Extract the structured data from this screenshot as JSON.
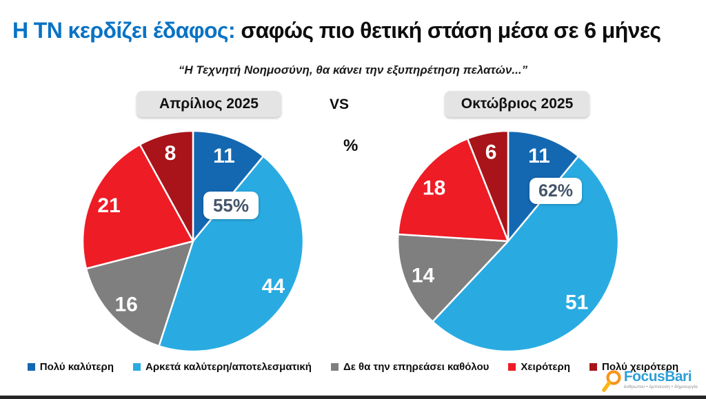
{
  "header": {
    "title_highlight": "Η ΤΝ κερδίζει έδαφος:",
    "title_rest": " σαφώς πιο θετική στάση μέσα σε 6 μήνες",
    "subtitle": "“Η Τεχνητή Νοημοσύνη, θα κάνει την εξυπηρέτηση πελατών...”",
    "vs_label": "VS",
    "percent_symbol": "%"
  },
  "chart_data": {
    "type": "pie",
    "unit": "%",
    "direction": "clockwise",
    "start_angle_deg": 0,
    "legend_position": "bottom",
    "categories": [
      "Πολύ καλύτερη",
      "Αρκετά καλύτερη/αποτελεσματική",
      "Δε θα την επηρεάσει καθόλου",
      "Χειρότερη",
      "Πολύ χειρότερη"
    ],
    "colors": [
      "#1468B1",
      "#29ABE2",
      "#7F7F7F",
      "#EE1C25",
      "#A81419"
    ],
    "pies": [
      {
        "label": "Απρίλιος 2025",
        "values": [
          11,
          44,
          16,
          21,
          8
        ],
        "callout": "55%"
      },
      {
        "label": "Οκτώβριος 2025",
        "values": [
          11,
          51,
          14,
          18,
          6
        ],
        "callout": "62%"
      }
    ]
  },
  "footer": {
    "brand_name": "FocusBari",
    "brand_tagline": "άνθρωποι • έμπνευση • δημιουργία"
  }
}
